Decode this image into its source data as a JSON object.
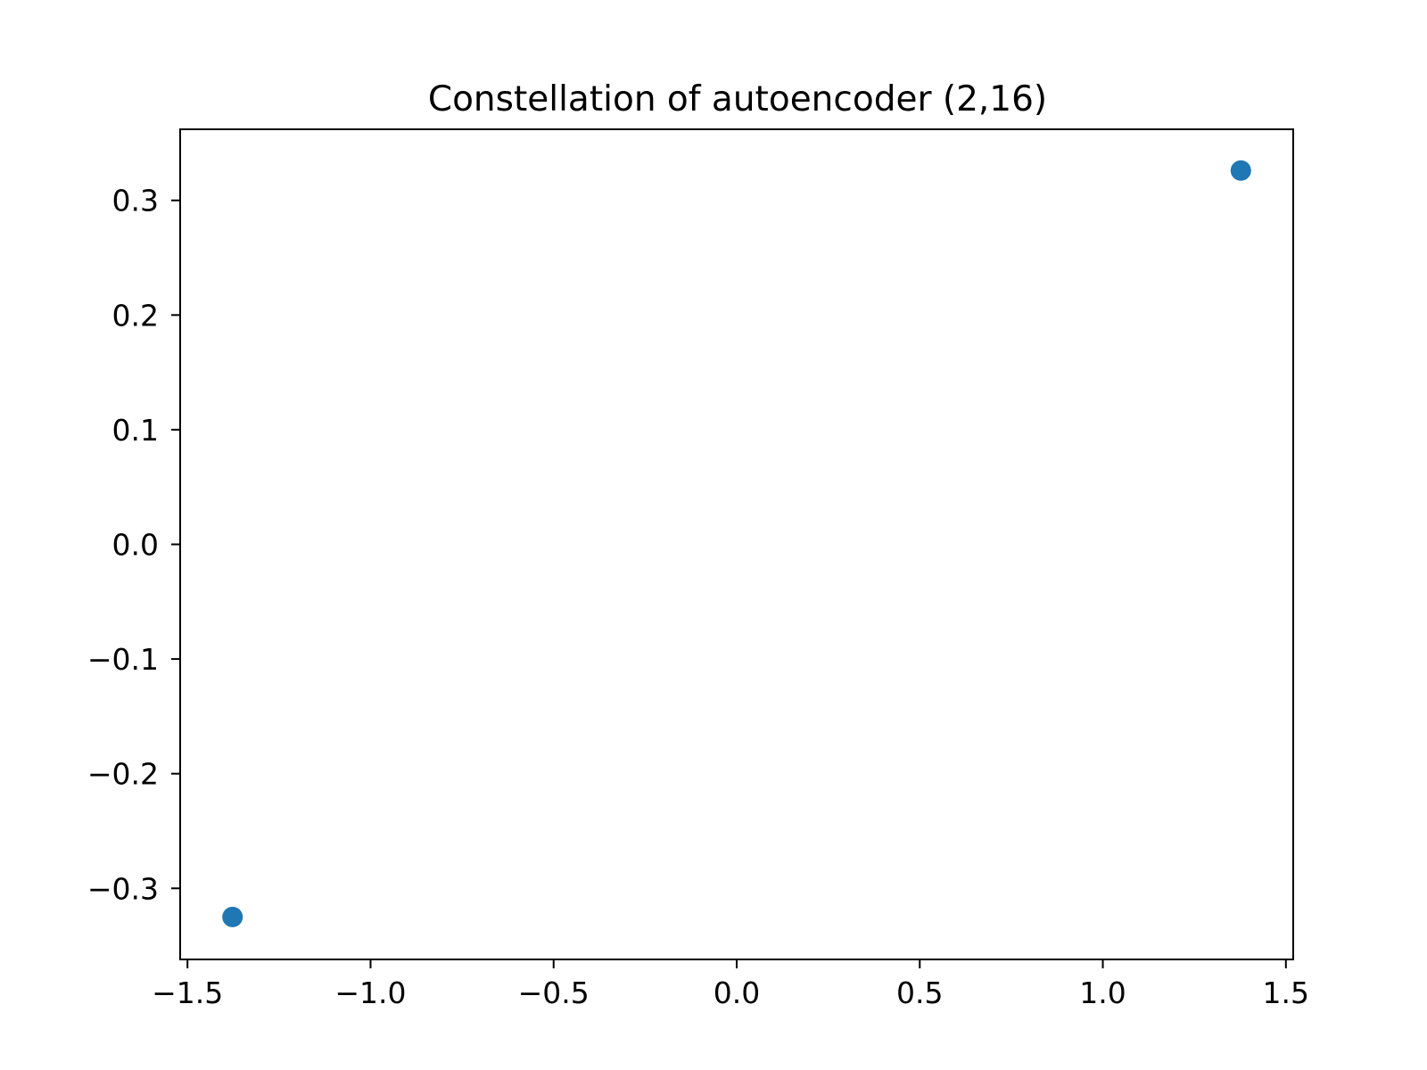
{
  "chart_data": {
    "type": "scatter",
    "title": "Constellation of autoencoder (2,16)",
    "xlabel": "",
    "ylabel": "",
    "xlim": [
      -1.52,
      1.52
    ],
    "ylim": [
      -0.362,
      0.362
    ],
    "grid": false,
    "xticks": [
      -1.5,
      -1.0,
      -0.5,
      0.0,
      0.5,
      1.0,
      1.5
    ],
    "xtick_labels": [
      "−1.5",
      "−1.0",
      "−0.5",
      "0.0",
      "0.5",
      "1.0",
      "1.5"
    ],
    "yticks": [
      0.3,
      0.2,
      0.1,
      0.0,
      -0.1,
      -0.2,
      -0.3
    ],
    "ytick_labels": [
      "0.3",
      "0.2",
      "0.1",
      "0.0",
      "−0.1",
      "−0.2",
      "−0.3"
    ],
    "series": [
      {
        "points": [
          {
            "x": -1.377,
            "y": -0.325
          },
          {
            "x": 1.377,
            "y": 0.326
          }
        ],
        "color": "#1f77b4"
      }
    ]
  }
}
